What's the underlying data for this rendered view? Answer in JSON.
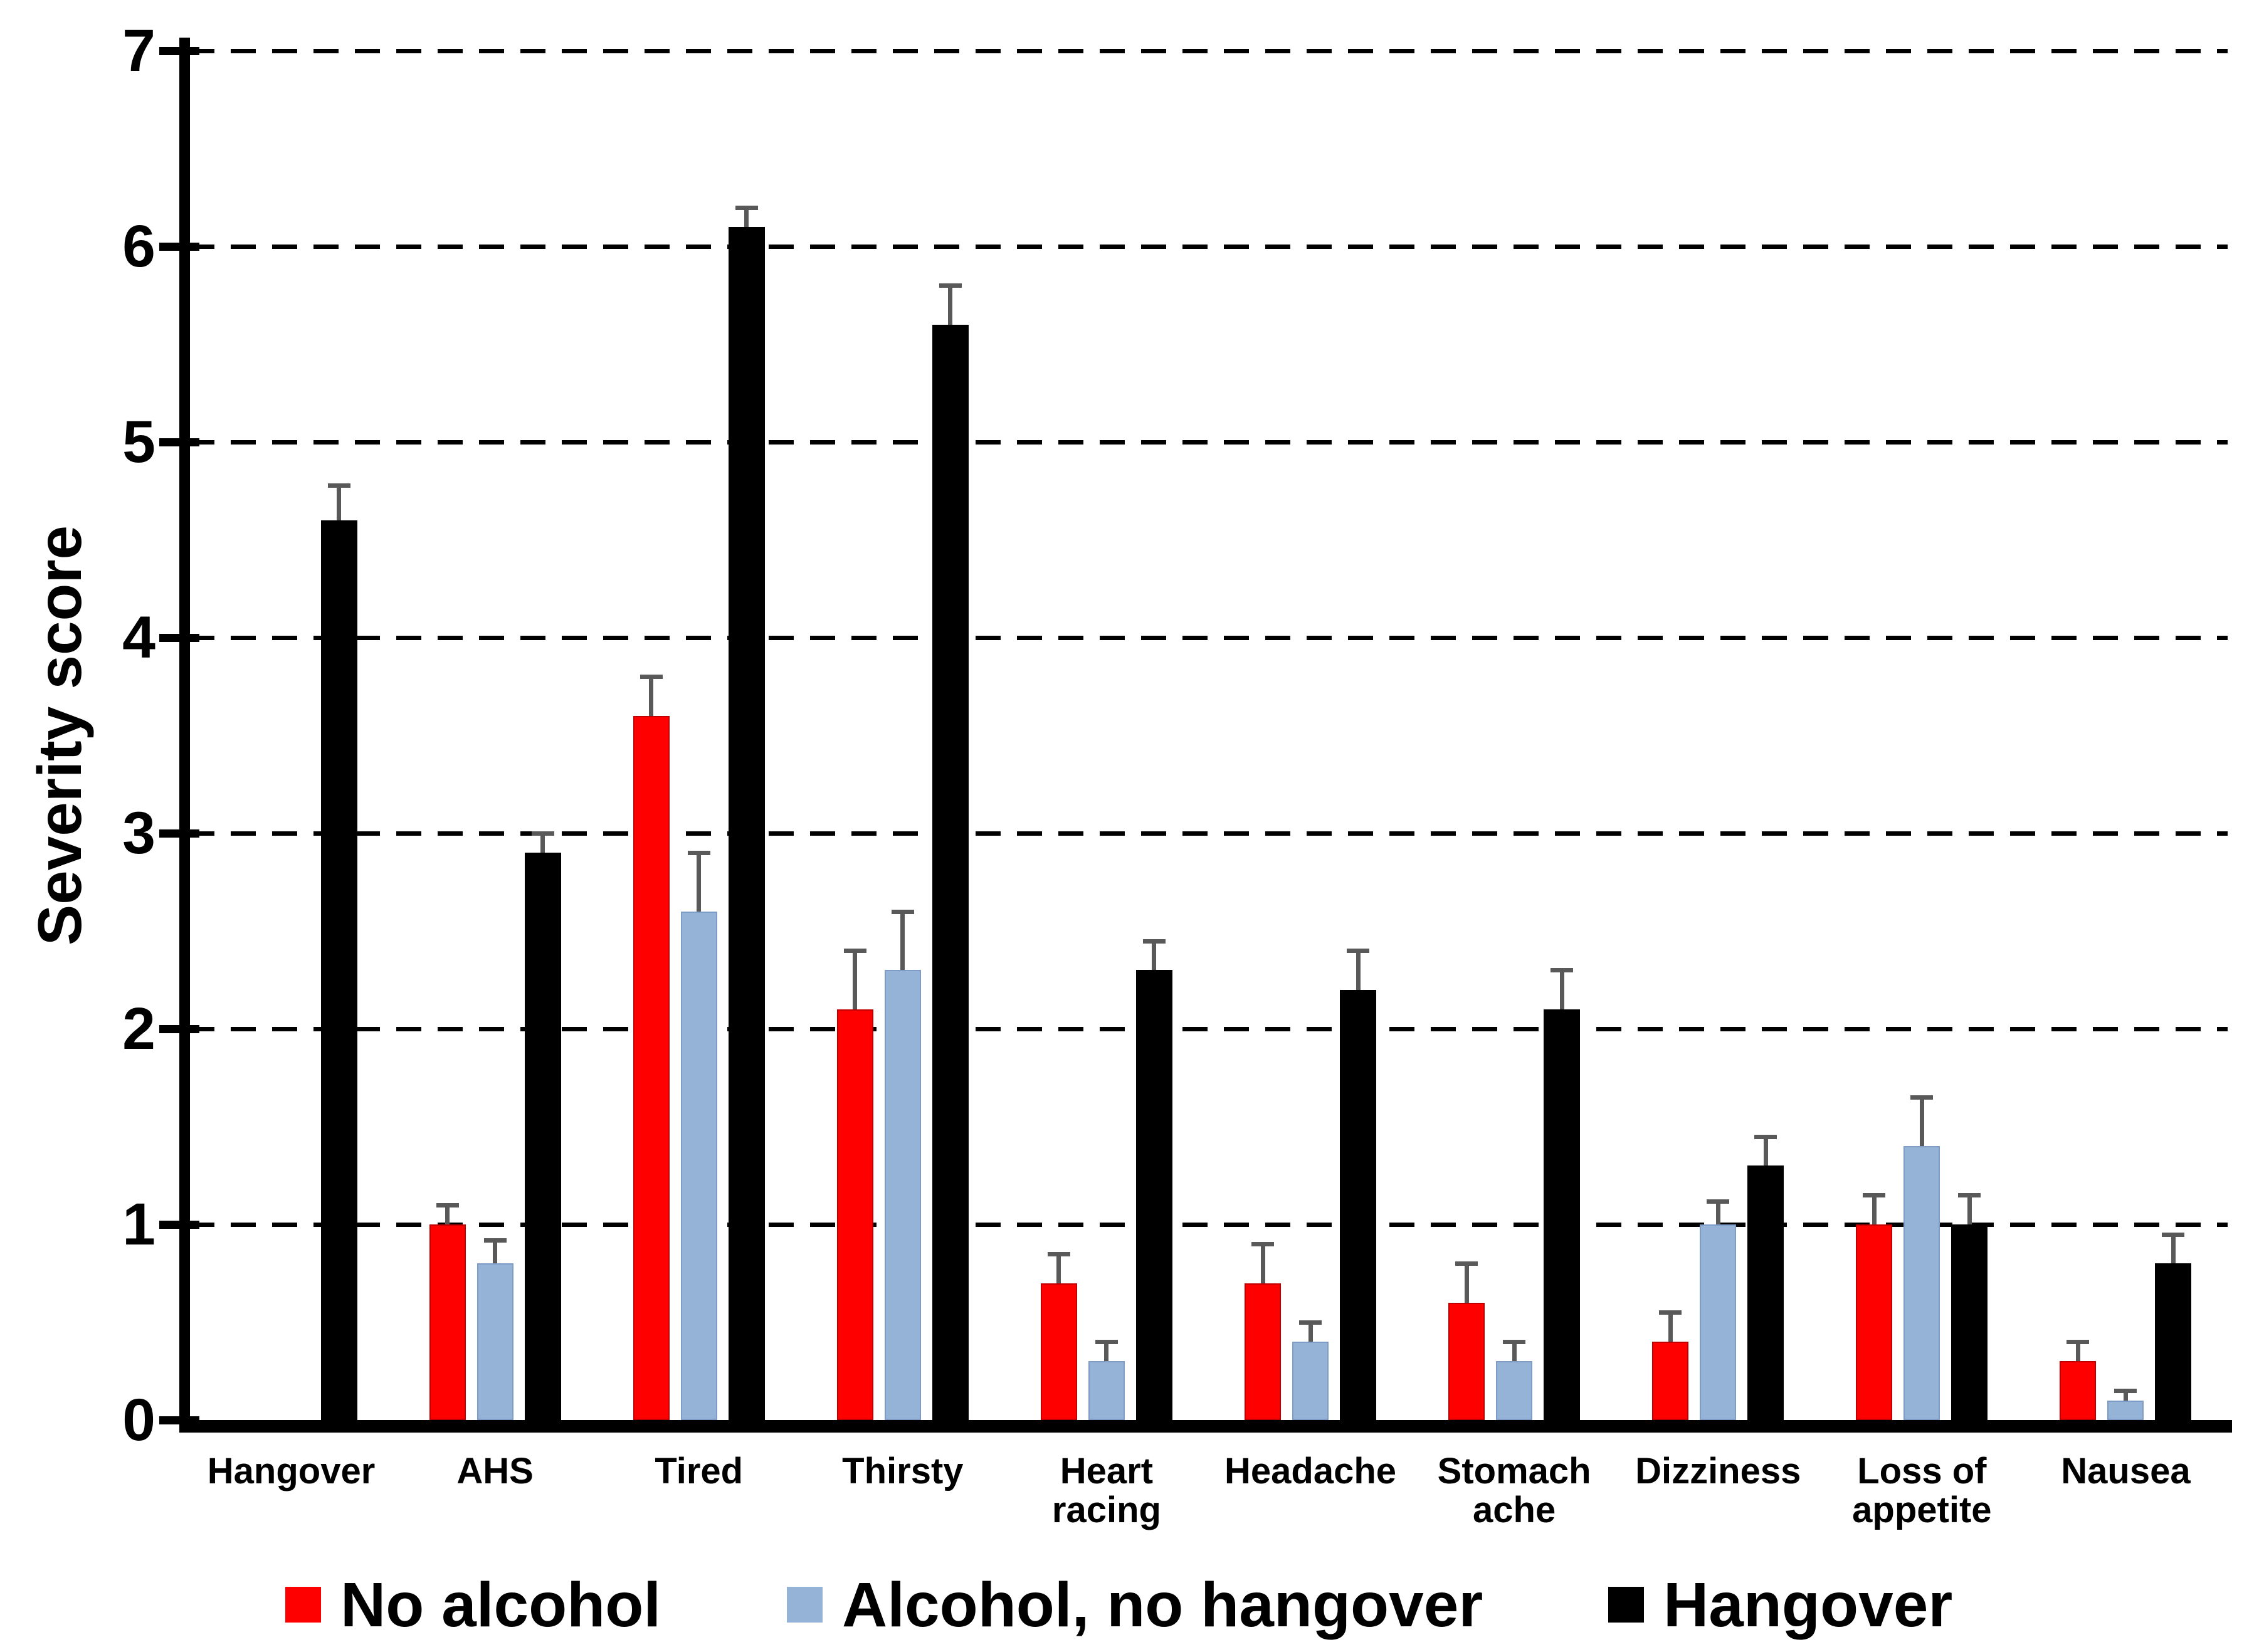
{
  "chart_data": {
    "type": "bar",
    "title": "",
    "xlabel": "",
    "ylabel": "Severity score",
    "ylim": [
      0,
      7
    ],
    "y_ticks": [
      "0",
      "1",
      "2",
      "3",
      "4",
      "5",
      "6",
      "7"
    ],
    "grid": "horizontal-dashed",
    "legend_position": "bottom",
    "error_bars": "upper-only",
    "error_bar_color": "#595959",
    "categories": [
      "Hangover",
      "AHS",
      "Tired",
      "Thirsty",
      "Heart racing",
      "Headache",
      "Stomach ache",
      "Dizziness",
      "Loss of appetite",
      "Nausea"
    ],
    "category_display_lines": [
      [
        "Hangover"
      ],
      [
        "AHS"
      ],
      [
        "Tired"
      ],
      [
        "Thirsty"
      ],
      [
        "Heart",
        "racing"
      ],
      [
        "Headache"
      ],
      [
        "Stomach",
        "ache"
      ],
      [
        "Dizziness"
      ],
      [
        "Loss of",
        "appetite"
      ],
      [
        "Nausea"
      ]
    ],
    "series": [
      {
        "name": "No alcohol",
        "color": "#fe0000",
        "edge_color": "#c00000",
        "values": [
          0,
          1.0,
          3.6,
          2.1,
          0.7,
          0.7,
          0.6,
          0.4,
          1.0,
          0.3
        ],
        "errors": [
          0,
          0.1,
          0.2,
          0.3,
          0.15,
          0.2,
          0.2,
          0.15,
          0.15,
          0.1
        ]
      },
      {
        "name": "Alcohol, no hangover",
        "color": "#95b3d7",
        "edge_color": "#7f9cc7",
        "values": [
          0,
          0.8,
          2.6,
          2.3,
          0.3,
          0.4,
          0.3,
          1.0,
          1.4,
          0.1
        ],
        "errors": [
          0,
          0.12,
          0.3,
          0.3,
          0.1,
          0.1,
          0.1,
          0.12,
          0.25,
          0.05
        ]
      },
      {
        "name": "Hangover",
        "color": "#000000",
        "edge_color": "#000000",
        "values": [
          4.6,
          2.9,
          6.1,
          5.6,
          2.3,
          2.2,
          2.1,
          1.3,
          1.0,
          0.8
        ],
        "errors": [
          0.18,
          0.1,
          0.1,
          0.2,
          0.15,
          0.2,
          0.2,
          0.15,
          0.15,
          0.15
        ]
      }
    ]
  }
}
